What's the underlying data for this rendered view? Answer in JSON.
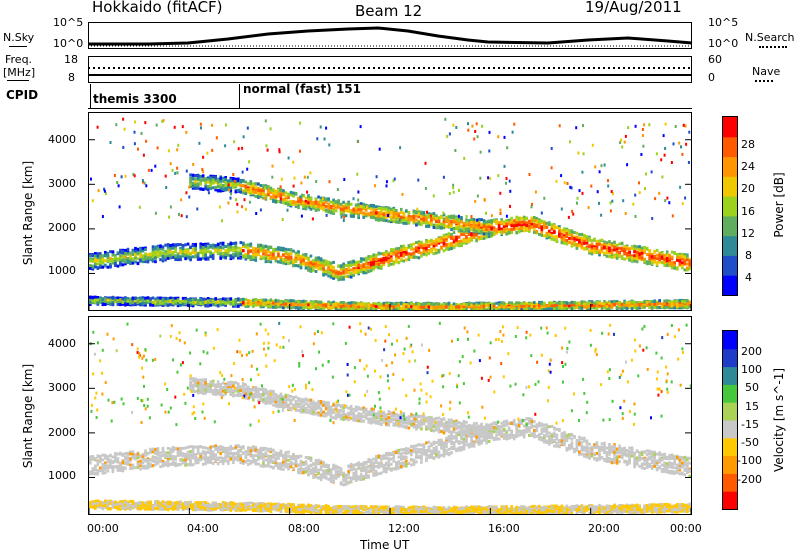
{
  "header": {
    "title": "Hokkaido (fitACF)",
    "beam": "Beam 12",
    "date": "19/Aug/2011"
  },
  "summary_panels": {
    "nsky_label": "N.Sky",
    "nsky_ticks": [
      "10^5",
      "10^0"
    ],
    "nsearch_label": "N.Search",
    "nsearch_ticks": [
      "10^5",
      "10^0"
    ],
    "freq_label_1": "Freq.",
    "freq_label_2": "[MHz]",
    "freq_ticks": [
      "18",
      "8"
    ],
    "nave_label": "Nave",
    "nave_ticks": [
      "60",
      "0"
    ]
  },
  "cpid": {
    "label": "CPID",
    "modes": [
      {
        "name": "themis 3300",
        "start_hour": 0
      },
      {
        "name": "normal (fast) 151",
        "start_hour": 6
      }
    ]
  },
  "chart_data": [
    {
      "type": "heatmap",
      "title": "",
      "ylabel": "Slant Range [km]",
      "xlabel": "",
      "xlim": [
        0,
        24
      ],
      "ylim": [
        180,
        4600
      ],
      "yticks": [
        "1000",
        "2000",
        "3000",
        "4000"
      ],
      "colorbar": {
        "label": "Power [dB]",
        "ticks": [
          "4",
          "8",
          "12",
          "16",
          "20",
          "24",
          "28"
        ],
        "range": [
          0,
          32
        ],
        "colors": [
          "#0000ff",
          "#1e4ec8",
          "#2e8a96",
          "#5fae5f",
          "#9ad21e",
          "#f0c800",
          "#ff9600",
          "#ff5a00",
          "#ff0000"
        ]
      },
      "echo_bands": [
        {
          "name": "low-range ground scatter",
          "points": [
            [
              0,
              420
            ],
            [
              6,
              380
            ],
            [
              10,
              300
            ],
            [
              14,
              280
            ],
            [
              18,
              300
            ],
            [
              24,
              350
            ]
          ]
        },
        {
          "name": "main band",
          "points": [
            [
              0,
              1300
            ],
            [
              3,
              1500
            ],
            [
              6,
              1550
            ],
            [
              8,
              1400
            ],
            [
              10,
              1050
            ],
            [
              12,
              1400
            ],
            [
              14,
              1700
            ],
            [
              16,
              2050
            ],
            [
              17.5,
              2150
            ],
            [
              20,
              1650
            ],
            [
              24,
              1250
            ]
          ]
        },
        {
          "name": "upper band",
          "points": [
            [
              4,
              3100
            ],
            [
              6,
              3000
            ],
            [
              8,
              2700
            ],
            [
              10,
              2500
            ],
            [
              12,
              2350
            ],
            [
              14,
              2200
            ],
            [
              16,
              2050
            ]
          ]
        }
      ]
    },
    {
      "type": "heatmap",
      "title": "",
      "ylabel": "Slant Range [km]",
      "xlabel": "Time UT",
      "xlim": [
        0,
        24
      ],
      "ylim": [
        180,
        4600
      ],
      "yticks": [
        "1000",
        "2000",
        "3000",
        "4000"
      ],
      "xticks": [
        "00:00",
        "04:00",
        "08:00",
        "12:00",
        "16:00",
        "20:00",
        "00:00"
      ],
      "colorbar": {
        "label": "Velocity [m s^-1]",
        "ticks": [
          "200",
          "100",
          "50",
          "15",
          "-15",
          "-50",
          "-100",
          "-200"
        ],
        "range": [
          -250,
          250
        ],
        "colors": [
          "#ff0000",
          "#ff5a00",
          "#ff9a00",
          "#ffc800",
          "#c8c8c8",
          "#aad255",
          "#46c83c",
          "#2e8a96",
          "#1e3cc8",
          "#0000ff"
        ]
      }
    }
  ]
}
